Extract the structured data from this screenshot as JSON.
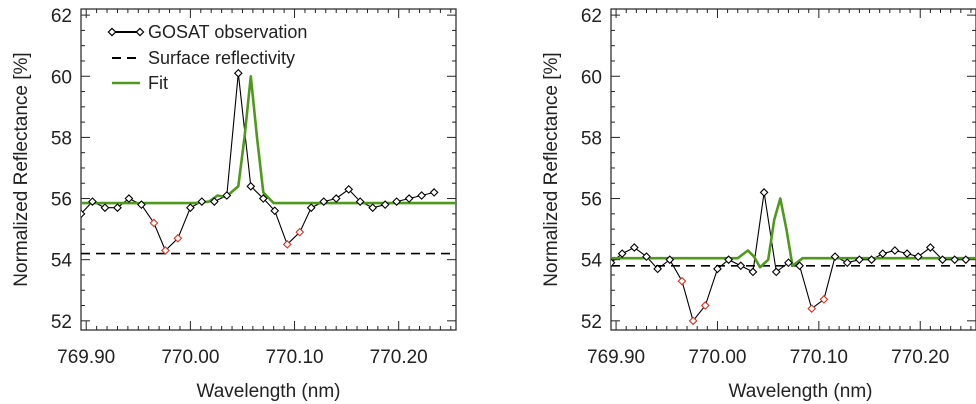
{
  "colors": {
    "observation": "#000000",
    "observation_outlier": "#d8311f",
    "surface": "#000000",
    "fit": "#4f9a1c",
    "axis": "#222222"
  },
  "legend": {
    "observation": "GOSAT observation",
    "surface": "Surface reflectivity",
    "fit": "Fit"
  },
  "chart_data": [
    {
      "type": "line",
      "xlabel": "Wavelength (nm)",
      "ylabel": "Normalized Reflectance [%]",
      "xlim": [
        769.895,
        770.255
      ],
      "ylim": [
        51.7,
        62.2
      ],
      "xticks": [
        769.9,
        770.0,
        770.1,
        770.2
      ],
      "xtick_labels": [
        "769.90",
        "770.00",
        "770.10",
        "770.20"
      ],
      "yticks": [
        52,
        54,
        56,
        58,
        60,
        62
      ],
      "ytick_labels": [
        "52",
        "54",
        "56",
        "58",
        "60",
        "62"
      ],
      "legend_position": "top-left",
      "grid": false,
      "series": [
        {
          "name": "GOSAT observation",
          "style": "black line with diamond markers",
          "x": [
            769.895,
            769.906,
            769.918,
            769.93,
            769.941,
            769.953,
            769.965,
            769.976,
            769.988,
            770.0,
            770.011,
            770.023,
            770.035,
            770.046,
            770.058,
            770.07,
            770.081,
            770.093,
            770.105,
            770.116,
            770.128,
            770.14,
            770.152,
            770.163,
            770.175,
            770.187,
            770.198,
            770.21,
            770.222,
            770.234
          ],
          "y": [
            55.5,
            55.9,
            55.7,
            55.7,
            56.0,
            55.8,
            55.2,
            54.3,
            54.7,
            55.7,
            55.9,
            55.9,
            56.1,
            60.1,
            56.4,
            56.0,
            55.6,
            54.5,
            54.9,
            55.7,
            55.9,
            56.0,
            56.3,
            55.9,
            55.7,
            55.8,
            55.9,
            56.0,
            56.1,
            56.2
          ],
          "outlier_points": [
            6,
            7,
            8,
            17,
            18
          ]
        },
        {
          "name": "Surface reflectivity",
          "style": "dashed",
          "x": [
            769.895,
            770.255
          ],
          "y": [
            54.2,
            54.2
          ]
        },
        {
          "name": "Fit",
          "style": "green solid",
          "x": [
            769.895,
            770.005,
            770.018,
            770.026,
            770.034,
            770.046,
            770.052,
            770.058,
            770.064,
            770.07,
            770.08,
            770.255
          ],
          "y": [
            55.85,
            55.85,
            55.9,
            56.1,
            56.05,
            56.4,
            58.0,
            60.0,
            58.0,
            56.2,
            55.85,
            55.85
          ]
        }
      ]
    },
    {
      "type": "line",
      "xlabel": "Wavelength (nm)",
      "ylabel": "Normalized Reflectance [%]",
      "xlim": [
        769.895,
        770.255
      ],
      "ylim": [
        51.7,
        62.2
      ],
      "xticks": [
        769.9,
        770.0,
        770.1,
        770.2
      ],
      "xtick_labels": [
        "769.90",
        "770.00",
        "770.10",
        "770.20"
      ],
      "yticks": [
        52,
        54,
        56,
        58,
        60,
        62
      ],
      "ytick_labels": [
        "52",
        "54",
        "56",
        "58",
        "60",
        "62"
      ],
      "grid": false,
      "series": [
        {
          "name": "GOSAT observation",
          "style": "black line with diamond markers",
          "x": [
            769.895,
            769.906,
            769.918,
            769.93,
            769.941,
            769.953,
            769.965,
            769.976,
            769.988,
            770.0,
            770.011,
            770.023,
            770.035,
            770.046,
            770.058,
            770.07,
            770.081,
            770.093,
            770.105,
            770.116,
            770.128,
            770.14,
            770.152,
            770.163,
            770.175,
            770.187,
            770.198,
            770.21,
            770.222,
            770.234,
            770.245
          ],
          "y": [
            53.9,
            54.2,
            54.4,
            54.1,
            53.7,
            54.0,
            53.3,
            52.0,
            52.5,
            53.7,
            54.0,
            53.8,
            53.6,
            56.2,
            53.6,
            53.9,
            53.8,
            52.4,
            52.7,
            54.1,
            53.9,
            54.0,
            54.0,
            54.2,
            54.3,
            54.2,
            54.1,
            54.4,
            54.0,
            54.0,
            54.0
          ],
          "outlier_points": [
            6,
            7,
            8,
            17,
            18
          ]
        },
        {
          "name": "Surface reflectivity",
          "style": "dashed",
          "x": [
            769.895,
            770.255
          ],
          "y": [
            53.8,
            53.8
          ]
        },
        {
          "name": "Fit",
          "style": "green solid",
          "x": [
            769.895,
            770.02,
            770.03,
            770.036,
            770.042,
            770.05,
            770.056,
            770.062,
            770.068,
            770.074,
            770.084,
            770.255
          ],
          "y": [
            54.05,
            54.05,
            54.3,
            54.1,
            53.75,
            54.0,
            55.3,
            56.0,
            55.0,
            53.8,
            54.05,
            54.05
          ]
        }
      ]
    }
  ]
}
